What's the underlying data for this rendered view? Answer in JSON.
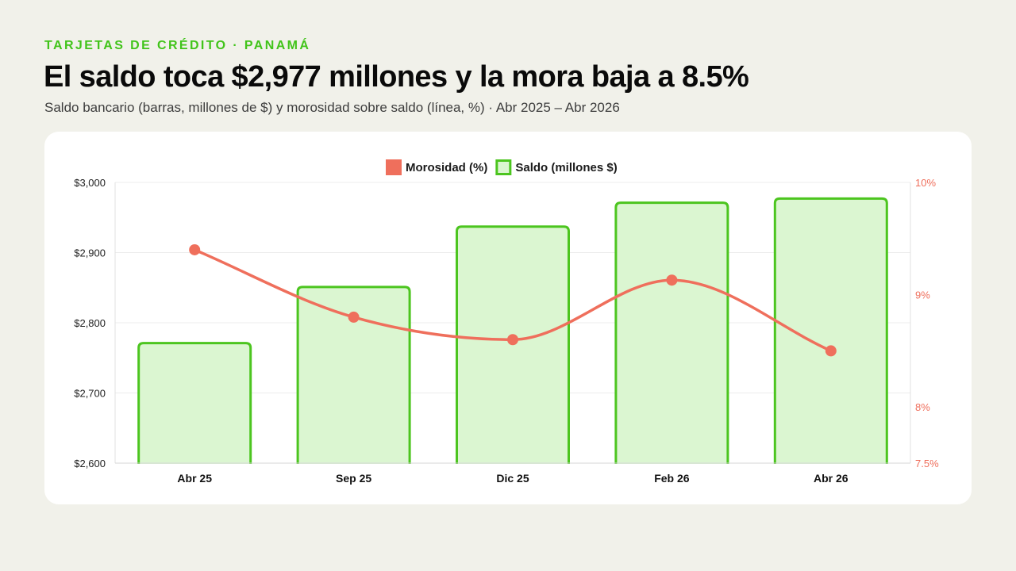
{
  "header": {
    "kicker": "TARJETAS DE CRÉDITO · PANAMÁ",
    "title": "El saldo toca $2,977 millones y la mora baja a 8.5%",
    "subtitle": "Saldo bancario (barras, millones de $) y morosidad sobre saldo (línea, %) · Abr 2025 – Abr 2026"
  },
  "chart_data": {
    "type": "bar",
    "categories": [
      "Abr 25",
      "Sep 25",
      "Dic 25",
      "Feb 26",
      "Abr 26"
    ],
    "series": [
      {
        "name": "Saldo (millones $)",
        "type": "bar",
        "axis": "left",
        "values": [
          2771,
          2851,
          2937,
          2971,
          2977
        ],
        "color": "#4cc51f",
        "fill": "#dbf6d1"
      },
      {
        "name": "Morosidad (%)",
        "type": "line",
        "axis": "right",
        "values": [
          9.4,
          8.8,
          8.6,
          9.13,
          8.5
        ],
        "color": "#ef6f5c"
      }
    ],
    "legend_order": [
      "Morosidad (%)",
      "Saldo (millones $)"
    ],
    "legend_position": "top-center",
    "y_left": {
      "range": [
        2600,
        3000
      ],
      "ticks": [
        "$2,600",
        "$2,700",
        "$2,800",
        "$2,900",
        "$3,000"
      ]
    },
    "y_right": {
      "range": [
        7.5,
        10
      ],
      "tick_values": [
        7.5,
        8,
        9,
        10
      ],
      "ticks": [
        "7.5%",
        "8%",
        "9%",
        "10%"
      ]
    },
    "grid": true
  }
}
